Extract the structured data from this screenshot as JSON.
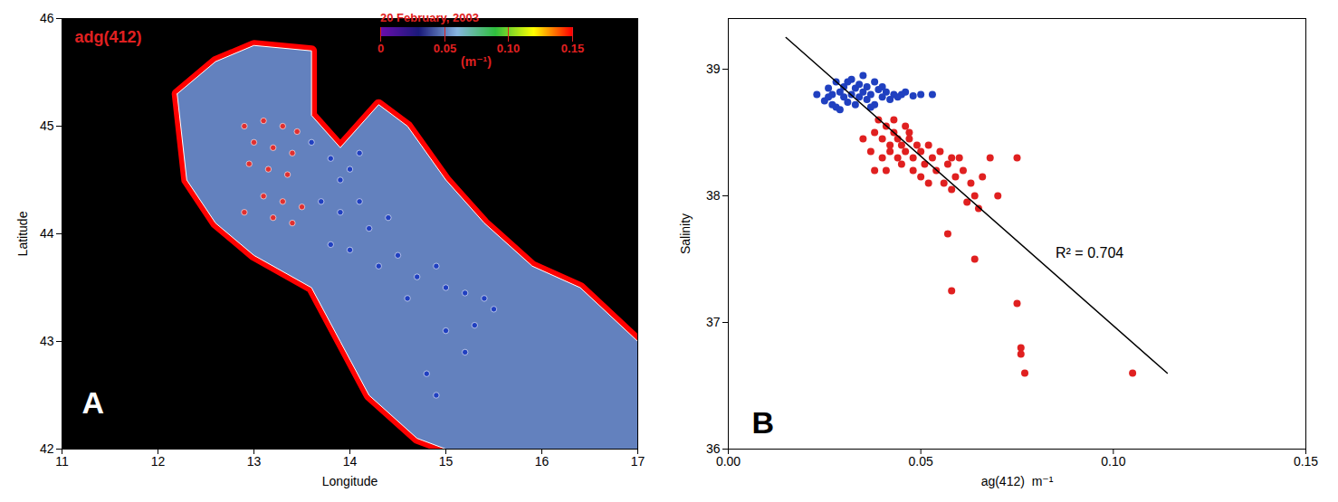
{
  "chart_data": [
    {
      "type": "map",
      "title": "adg(412)",
      "letter": "A",
      "x_label": "Longitude",
      "y_label": "Latitude",
      "xlim": [
        11,
        17
      ],
      "xticks": [
        11,
        12,
        13,
        14,
        15,
        16,
        17
      ],
      "ylim": [
        42,
        46
      ],
      "yticks": [
        42,
        43,
        44,
        45,
        46
      ],
      "colorbar": {
        "title": "20 February, 2003",
        "unit": "(m⁻¹)",
        "range": [
          0,
          0.15
        ],
        "ticks": [
          0,
          0.05,
          {
            "value": 0.1,
            "label": "0.10"
          },
          0.15
        ],
        "colors": [
          "#6a0dad",
          "#1a1a7a",
          "#87b5e0",
          "#2fbf3f",
          "#ffff00",
          "#ff0000"
        ]
      },
      "sea_value": 0.05,
      "coast_value": 0.15,
      "sea_outline": {
        "lon": [
          12.2,
          12.6,
          13.0,
          13.6,
          13.6,
          13.9,
          14.3,
          14.6,
          15.0,
          15.4,
          15.9,
          16.4,
          17.0,
          17.0,
          15.0,
          14.7,
          14.2,
          13.9,
          13.6,
          13.0,
          12.6,
          12.3,
          12.2
        ],
        "lat": [
          45.3,
          45.6,
          45.75,
          45.7,
          45.1,
          44.8,
          45.2,
          45.0,
          44.5,
          44.1,
          43.7,
          43.5,
          43.0,
          42.0,
          42.0,
          42.1,
          42.5,
          43.0,
          43.5,
          43.8,
          44.1,
          44.5,
          45.3
        ]
      },
      "stations": [
        {
          "color": "#e03030",
          "lon": [
            12.9,
            13.1,
            13.3,
            13.45,
            13.0,
            13.2,
            13.4,
            12.95,
            13.15,
            13.35,
            13.1,
            13.3,
            13.5,
            12.9,
            13.2,
            13.4
          ],
          "lat": [
            45.0,
            45.05,
            45.0,
            44.95,
            44.85,
            44.8,
            44.75,
            44.65,
            44.6,
            44.55,
            44.35,
            44.3,
            44.25,
            44.2,
            44.15,
            44.1
          ]
        },
        {
          "color": "#2040c0",
          "lon": [
            13.6,
            13.8,
            14.0,
            14.1,
            13.9,
            13.7,
            13.9,
            14.1,
            14.2,
            14.4,
            13.8,
            14.0,
            14.3,
            14.5,
            14.7,
            14.9,
            14.6,
            15.0,
            15.2,
            15.4,
            15.3,
            15.0,
            14.8,
            14.9,
            15.2,
            15.5
          ],
          "lat": [
            44.85,
            44.7,
            44.6,
            44.75,
            44.5,
            44.3,
            44.2,
            44.3,
            44.05,
            44.15,
            43.9,
            43.85,
            43.7,
            43.8,
            43.6,
            43.7,
            43.4,
            43.5,
            43.45,
            43.4,
            43.15,
            43.1,
            42.7,
            42.5,
            42.9,
            43.3
          ]
        }
      ]
    },
    {
      "type": "scatter",
      "letter": "B",
      "x_label": "ag(412)  m⁻¹",
      "y_label": "Salinity",
      "xlim": [
        0,
        0.15
      ],
      "xticks": [
        {
          "value": 0,
          "label": "0.00"
        },
        0.05,
        {
          "value": 0.1,
          "label": "0.10"
        },
        0.15
      ],
      "ylim": [
        36,
        39.4
      ],
      "yticks": [
        36,
        37,
        38,
        39
      ],
      "series": [
        {
          "color": "#2040c0",
          "x": [
            0.023,
            0.025,
            0.026,
            0.027,
            0.028,
            0.028,
            0.029,
            0.03,
            0.03,
            0.031,
            0.031,
            0.032,
            0.033,
            0.033,
            0.034,
            0.034,
            0.035,
            0.035,
            0.036,
            0.036,
            0.037,
            0.038,
            0.038,
            0.039,
            0.04,
            0.041,
            0.042,
            0.043,
            0.044,
            0.046,
            0.048,
            0.05,
            0.053,
            0.029,
            0.027,
            0.032,
            0.026,
            0.037,
            0.04,
            0.045
          ],
          "y": [
            38.8,
            38.75,
            38.85,
            38.8,
            38.7,
            38.9,
            38.82,
            38.78,
            38.86,
            38.9,
            38.74,
            38.8,
            38.85,
            38.72,
            38.88,
            38.78,
            38.82,
            38.95,
            38.76,
            38.86,
            38.8,
            38.9,
            38.72,
            38.84,
            38.78,
            38.82,
            38.76,
            38.8,
            38.78,
            38.82,
            38.79,
            38.8,
            38.8,
            38.68,
            38.72,
            38.92,
            38.78,
            38.7,
            38.86,
            38.8
          ]
        },
        {
          "color": "#e02020",
          "x": [
            0.035,
            0.037,
            0.038,
            0.038,
            0.039,
            0.04,
            0.04,
            0.041,
            0.041,
            0.042,
            0.042,
            0.043,
            0.044,
            0.044,
            0.045,
            0.045,
            0.046,
            0.046,
            0.047,
            0.048,
            0.048,
            0.049,
            0.05,
            0.05,
            0.051,
            0.052,
            0.052,
            0.053,
            0.054,
            0.055,
            0.056,
            0.057,
            0.058,
            0.058,
            0.059,
            0.06,
            0.061,
            0.062,
            0.063,
            0.064,
            0.065,
            0.066,
            0.068,
            0.07,
            0.075,
            0.057,
            0.064,
            0.058,
            0.075,
            0.076,
            0.076,
            0.077,
            0.105,
            0.043,
            0.047
          ],
          "y": [
            38.45,
            38.35,
            38.5,
            38.2,
            38.6,
            38.3,
            38.45,
            38.55,
            38.2,
            38.4,
            38.35,
            38.5,
            38.3,
            38.45,
            38.25,
            38.4,
            38.55,
            38.35,
            38.45,
            38.2,
            38.3,
            38.4,
            38.35,
            38.15,
            38.25,
            38.4,
            38.1,
            38.3,
            38.2,
            38.35,
            38.1,
            38.25,
            38.3,
            38.05,
            38.15,
            38.3,
            38.2,
            37.95,
            38.1,
            38.0,
            37.9,
            38.15,
            38.3,
            38.0,
            38.3,
            37.7,
            37.5,
            37.25,
            37.15,
            36.8,
            36.75,
            36.6,
            36.6,
            38.6,
            38.5
          ]
        }
      ],
      "fit": {
        "color": "#000000",
        "x": [
          0.015,
          0.114
        ],
        "y": [
          39.25,
          36.6
        ]
      },
      "annotation": {
        "text": "R² = 0.704",
        "x": 0.085,
        "y": 37.55
      }
    }
  ]
}
